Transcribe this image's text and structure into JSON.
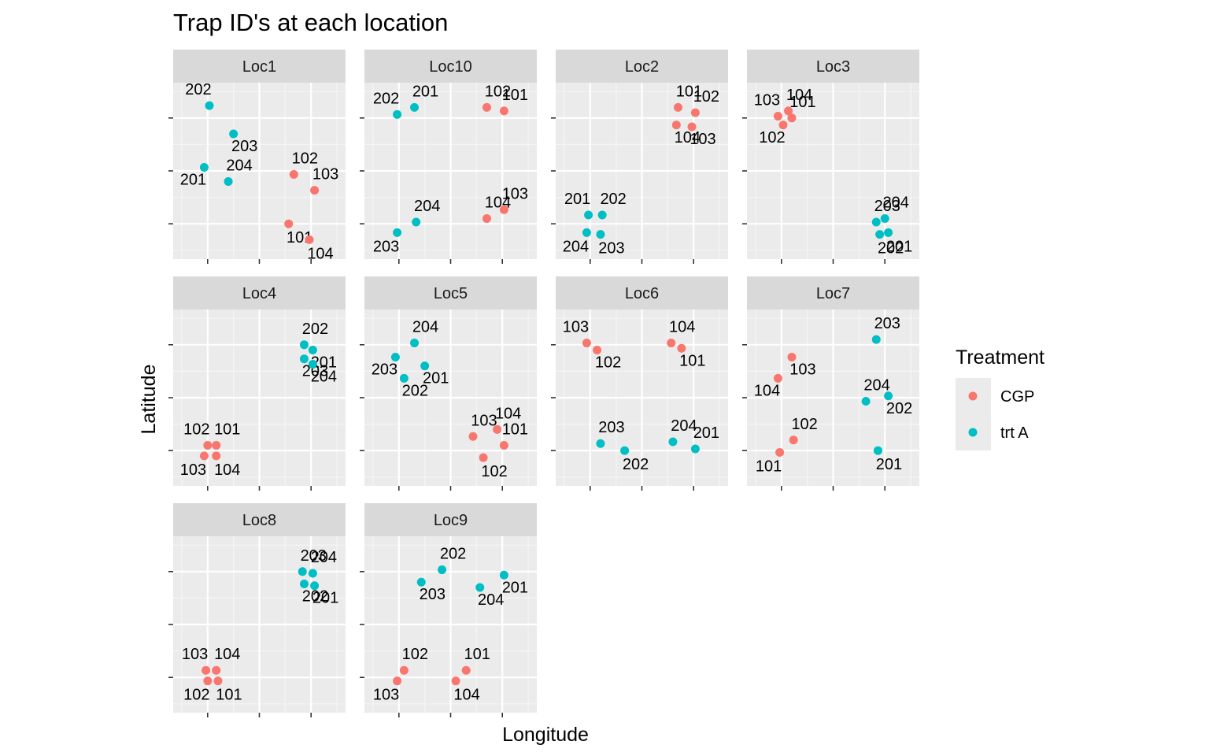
{
  "chart_data": {
    "type": "scatter",
    "title": "Trap ID's at each location",
    "xlabel": "Longitude",
    "ylabel": "Latitude",
    "grid": true,
    "legend": {
      "title": "Treatment",
      "placement": "right",
      "entries": [
        {
          "name": "CGP",
          "color": "#F8766D"
        },
        {
          "name": "trt A",
          "color": "#00BFC4"
        }
      ]
    },
    "x_tick_labels_shown": false,
    "y_tick_labels_shown": false,
    "facets": [
      {
        "name": "Loc1",
        "points": [
          {
            "id": "202",
            "treatment": "trt A",
            "x": 0.21,
            "y": 0.87
          },
          {
            "id": "203",
            "treatment": "trt A",
            "x": 0.35,
            "y": 0.71
          },
          {
            "id": "201",
            "treatment": "trt A",
            "x": 0.18,
            "y": 0.52
          },
          {
            "id": "204",
            "treatment": "trt A",
            "x": 0.32,
            "y": 0.44
          },
          {
            "id": "102",
            "treatment": "CGP",
            "x": 0.7,
            "y": 0.48
          },
          {
            "id": "103",
            "treatment": "CGP",
            "x": 0.82,
            "y": 0.39
          },
          {
            "id": "101",
            "treatment": "CGP",
            "x": 0.67,
            "y": 0.2
          },
          {
            "id": "104",
            "treatment": "CGP",
            "x": 0.79,
            "y": 0.11
          }
        ]
      },
      {
        "name": "Loc10",
        "points": [
          {
            "id": "202",
            "treatment": "trt A",
            "x": 0.19,
            "y": 0.82
          },
          {
            "id": "201",
            "treatment": "trt A",
            "x": 0.29,
            "y": 0.86
          },
          {
            "id": "102",
            "treatment": "CGP",
            "x": 0.71,
            "y": 0.86
          },
          {
            "id": "101",
            "treatment": "CGP",
            "x": 0.81,
            "y": 0.84
          },
          {
            "id": "204",
            "treatment": "trt A",
            "x": 0.3,
            "y": 0.21
          },
          {
            "id": "203",
            "treatment": "trt A",
            "x": 0.19,
            "y": 0.15
          },
          {
            "id": "103",
            "treatment": "CGP",
            "x": 0.81,
            "y": 0.28
          },
          {
            "id": "104",
            "treatment": "CGP",
            "x": 0.71,
            "y": 0.23
          }
        ]
      },
      {
        "name": "Loc2",
        "points": [
          {
            "id": "101",
            "treatment": "CGP",
            "x": 0.71,
            "y": 0.86
          },
          {
            "id": "102",
            "treatment": "CGP",
            "x": 0.81,
            "y": 0.83
          },
          {
            "id": "104",
            "treatment": "CGP",
            "x": 0.7,
            "y": 0.76
          },
          {
            "id": "103",
            "treatment": "CGP",
            "x": 0.79,
            "y": 0.75
          },
          {
            "id": "201",
            "treatment": "trt A",
            "x": 0.19,
            "y": 0.25
          },
          {
            "id": "202",
            "treatment": "trt A",
            "x": 0.27,
            "y": 0.25
          },
          {
            "id": "204",
            "treatment": "trt A",
            "x": 0.18,
            "y": 0.15
          },
          {
            "id": "203",
            "treatment": "trt A",
            "x": 0.26,
            "y": 0.14
          }
        ]
      },
      {
        "name": "Loc3",
        "points": [
          {
            "id": "103",
            "treatment": "CGP",
            "x": 0.18,
            "y": 0.81
          },
          {
            "id": "104",
            "treatment": "CGP",
            "x": 0.24,
            "y": 0.84
          },
          {
            "id": "101",
            "treatment": "CGP",
            "x": 0.26,
            "y": 0.8
          },
          {
            "id": "102",
            "treatment": "CGP",
            "x": 0.21,
            "y": 0.76
          },
          {
            "id": "203",
            "treatment": "trt A",
            "x": 0.75,
            "y": 0.21
          },
          {
            "id": "204",
            "treatment": "trt A",
            "x": 0.8,
            "y": 0.23
          },
          {
            "id": "202",
            "treatment": "trt A",
            "x": 0.77,
            "y": 0.14
          },
          {
            "id": "201",
            "treatment": "trt A",
            "x": 0.82,
            "y": 0.15
          }
        ]
      },
      {
        "name": "Loc4",
        "points": [
          {
            "id": "202",
            "treatment": "trt A",
            "x": 0.76,
            "y": 0.8
          },
          {
            "id": "201",
            "treatment": "trt A",
            "x": 0.81,
            "y": 0.77
          },
          {
            "id": "203",
            "treatment": "trt A",
            "x": 0.76,
            "y": 0.72
          },
          {
            "id": "204",
            "treatment": "trt A",
            "x": 0.81,
            "y": 0.69
          },
          {
            "id": "102",
            "treatment": "CGP",
            "x": 0.2,
            "y": 0.23
          },
          {
            "id": "101",
            "treatment": "CGP",
            "x": 0.25,
            "y": 0.23
          },
          {
            "id": "103",
            "treatment": "CGP",
            "x": 0.18,
            "y": 0.17
          },
          {
            "id": "104",
            "treatment": "CGP",
            "x": 0.25,
            "y": 0.17
          }
        ]
      },
      {
        "name": "Loc5",
        "points": [
          {
            "id": "204",
            "treatment": "trt A",
            "x": 0.29,
            "y": 0.81
          },
          {
            "id": "203",
            "treatment": "trt A",
            "x": 0.18,
            "y": 0.73
          },
          {
            "id": "201",
            "treatment": "trt A",
            "x": 0.35,
            "y": 0.68
          },
          {
            "id": "202",
            "treatment": "trt A",
            "x": 0.23,
            "y": 0.61
          },
          {
            "id": "104",
            "treatment": "CGP",
            "x": 0.77,
            "y": 0.32
          },
          {
            "id": "101",
            "treatment": "CGP",
            "x": 0.81,
            "y": 0.23
          },
          {
            "id": "103",
            "treatment": "CGP",
            "x": 0.63,
            "y": 0.28
          },
          {
            "id": "102",
            "treatment": "CGP",
            "x": 0.69,
            "y": 0.16
          }
        ]
      },
      {
        "name": "Loc6",
        "points": [
          {
            "id": "103",
            "treatment": "CGP",
            "x": 0.18,
            "y": 0.81
          },
          {
            "id": "104",
            "treatment": "CGP",
            "x": 0.67,
            "y": 0.81
          },
          {
            "id": "102",
            "treatment": "CGP",
            "x": 0.24,
            "y": 0.77
          },
          {
            "id": "101",
            "treatment": "CGP",
            "x": 0.73,
            "y": 0.78
          },
          {
            "id": "203",
            "treatment": "trt A",
            "x": 0.26,
            "y": 0.24
          },
          {
            "id": "204",
            "treatment": "trt A",
            "x": 0.68,
            "y": 0.25
          },
          {
            "id": "202",
            "treatment": "trt A",
            "x": 0.4,
            "y": 0.2
          },
          {
            "id": "201",
            "treatment": "trt A",
            "x": 0.81,
            "y": 0.21
          }
        ]
      },
      {
        "name": "Loc7",
        "points": [
          {
            "id": "103",
            "treatment": "CGP",
            "x": 0.26,
            "y": 0.73
          },
          {
            "id": "104",
            "treatment": "CGP",
            "x": 0.18,
            "y": 0.61
          },
          {
            "id": "102",
            "treatment": "CGP",
            "x": 0.27,
            "y": 0.26
          },
          {
            "id": "101",
            "treatment": "CGP",
            "x": 0.19,
            "y": 0.19
          },
          {
            "id": "203",
            "treatment": "trt A",
            "x": 0.75,
            "y": 0.83
          },
          {
            "id": "202",
            "treatment": "trt A",
            "x": 0.82,
            "y": 0.51
          },
          {
            "id": "204",
            "treatment": "trt A",
            "x": 0.69,
            "y": 0.48
          },
          {
            "id": "201",
            "treatment": "trt A",
            "x": 0.76,
            "y": 0.2
          }
        ]
      },
      {
        "name": "Loc8",
        "points": [
          {
            "id": "203",
            "treatment": "trt A",
            "x": 0.75,
            "y": 0.8
          },
          {
            "id": "204",
            "treatment": "trt A",
            "x": 0.81,
            "y": 0.79
          },
          {
            "id": "202",
            "treatment": "trt A",
            "x": 0.76,
            "y": 0.73
          },
          {
            "id": "201",
            "treatment": "trt A",
            "x": 0.82,
            "y": 0.72
          },
          {
            "id": "103",
            "treatment": "CGP",
            "x": 0.19,
            "y": 0.24
          },
          {
            "id": "104",
            "treatment": "CGP",
            "x": 0.25,
            "y": 0.24
          },
          {
            "id": "102",
            "treatment": "CGP",
            "x": 0.2,
            "y": 0.18
          },
          {
            "id": "101",
            "treatment": "CGP",
            "x": 0.26,
            "y": 0.18
          }
        ]
      },
      {
        "name": "Loc9",
        "points": [
          {
            "id": "202",
            "treatment": "trt A",
            "x": 0.45,
            "y": 0.81
          },
          {
            "id": "201",
            "treatment": "trt A",
            "x": 0.81,
            "y": 0.78
          },
          {
            "id": "203",
            "treatment": "trt A",
            "x": 0.33,
            "y": 0.74
          },
          {
            "id": "204",
            "treatment": "trt A",
            "x": 0.67,
            "y": 0.71
          },
          {
            "id": "102",
            "treatment": "CGP",
            "x": 0.23,
            "y": 0.24
          },
          {
            "id": "101",
            "treatment": "CGP",
            "x": 0.59,
            "y": 0.24
          },
          {
            "id": "103",
            "treatment": "CGP",
            "x": 0.19,
            "y": 0.18
          },
          {
            "id": "104",
            "treatment": "CGP",
            "x": 0.53,
            "y": 0.18
          }
        ]
      }
    ]
  }
}
